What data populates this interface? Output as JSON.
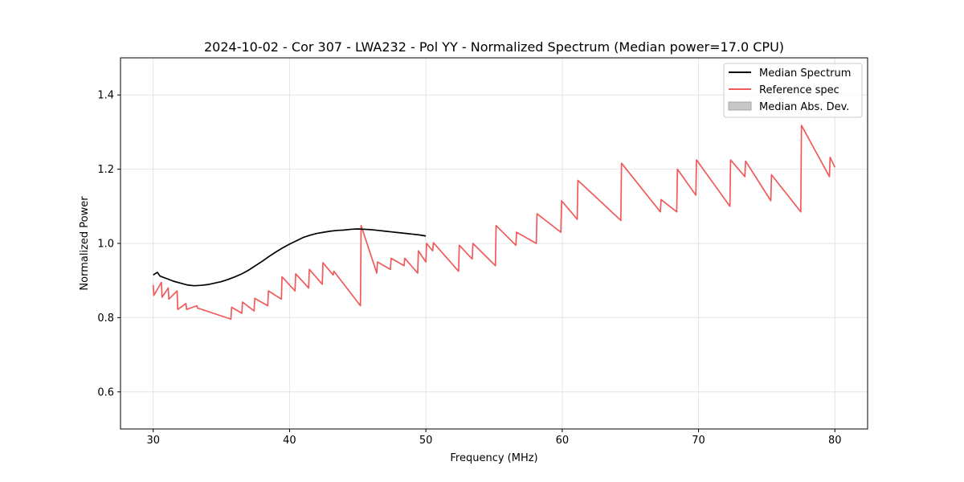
{
  "chart_data": {
    "type": "line",
    "title": "2024-10-02 - Cor 307 - LWA232 - Pol YY - Normalized Spectrum (Median power=17.0 CPU)",
    "xlabel": "Frequency (MHz)",
    "ylabel": "Normalized Power",
    "xlim": [
      27.6,
      82.4
    ],
    "ylim": [
      0.5,
      1.5
    ],
    "xticks": [
      30,
      40,
      50,
      60,
      70,
      80
    ],
    "xtick_labels": [
      "30",
      "40",
      "50",
      "60",
      "70",
      "80"
    ],
    "yticks": [
      0.6,
      0.8,
      1.0,
      1.2,
      1.4
    ],
    "ytick_labels": [
      "0.6",
      "0.8",
      "1.0",
      "1.2",
      "1.4"
    ],
    "grid": true,
    "legend": {
      "position": "top-right",
      "entries": [
        {
          "label": "Median Spectrum",
          "color": "#000000",
          "kind": "line"
        },
        {
          "label": "Reference spec",
          "color": "#f05a5a",
          "kind": "line"
        },
        {
          "label": "Median Abs. Dev.",
          "color": "#c8c8c8",
          "kind": "patch"
        }
      ]
    },
    "series": [
      {
        "name": "Median Spectrum",
        "color": "#000000",
        "x": [
          30,
          30.3,
          30.5,
          31,
          31.5,
          32,
          32.5,
          33,
          33.5,
          34,
          34.5,
          35,
          35.5,
          36,
          36.5,
          37,
          37.5,
          38,
          38.5,
          39,
          39.5,
          40,
          40.5,
          41,
          41.5,
          42,
          42.5,
          43,
          43.5,
          44,
          44.5,
          45,
          45.5,
          46,
          46.5,
          47,
          47.5,
          48,
          48.5,
          49,
          49.5,
          50
        ],
        "y": [
          0.915,
          0.922,
          0.912,
          0.905,
          0.898,
          0.893,
          0.888,
          0.886,
          0.887,
          0.889,
          0.893,
          0.897,
          0.903,
          0.91,
          0.918,
          0.928,
          0.94,
          0.952,
          0.965,
          0.977,
          0.988,
          0.998,
          1.007,
          1.016,
          1.022,
          1.027,
          1.03,
          1.033,
          1.035,
          1.036,
          1.038,
          1.039,
          1.038,
          1.037,
          1.035,
          1.033,
          1.031,
          1.029,
          1.027,
          1.025,
          1.023,
          1.02
        ]
      },
      {
        "name": "Reference spec",
        "color": "#f05a5a",
        "x": [
          30,
          30.05,
          30.6,
          30.65,
          31.1,
          31.15,
          31.75,
          31.8,
          32.4,
          32.45,
          33.2,
          33.25,
          35.7,
          35.75,
          36.5,
          36.55,
          37.4,
          37.45,
          38.4,
          38.45,
          39.4,
          39.45,
          40.4,
          40.45,
          41.4,
          41.45,
          42.4,
          42.45,
          43.2,
          43.25,
          45.2,
          45.25,
          46.4,
          46.45,
          47.4,
          47.45,
          48.4,
          48.45,
          49.4,
          49.45,
          50,
          50.05,
          50.5,
          50.55,
          52.4,
          52.45,
          53.4,
          53.45,
          55.1,
          55.15,
          56.6,
          56.65,
          58.1,
          58.15,
          59.9,
          59.95,
          61.1,
          61.15,
          64.3,
          64.35,
          67.2,
          67.25,
          68.4,
          68.45,
          69.8,
          69.85,
          72.3,
          72.35,
          73.4,
          73.45,
          75.3,
          75.35,
          77.5,
          77.55,
          79.6,
          79.65,
          80
        ],
        "y": [
          0.888,
          0.86,
          0.895,
          0.855,
          0.88,
          0.85,
          0.872,
          0.822,
          0.838,
          0.822,
          0.832,
          0.826,
          0.796,
          0.828,
          0.812,
          0.842,
          0.818,
          0.852,
          0.832,
          0.872,
          0.85,
          0.91,
          0.872,
          0.918,
          0.88,
          0.93,
          0.89,
          0.948,
          0.915,
          0.925,
          0.832,
          1.048,
          0.92,
          0.95,
          0.93,
          0.96,
          0.94,
          0.96,
          0.92,
          0.98,
          0.95,
          1.0,
          0.98,
          1.002,
          0.925,
          0.995,
          0.958,
          1.0,
          0.94,
          1.048,
          0.995,
          1.03,
          1.0,
          1.08,
          1.03,
          1.115,
          1.065,
          1.17,
          1.062,
          1.216,
          1.085,
          1.118,
          1.085,
          1.2,
          1.13,
          1.225,
          1.1,
          1.225,
          1.18,
          1.222,
          1.115,
          1.185,
          1.085,
          1.318,
          1.18,
          1.232,
          1.205
        ]
      }
    ]
  }
}
